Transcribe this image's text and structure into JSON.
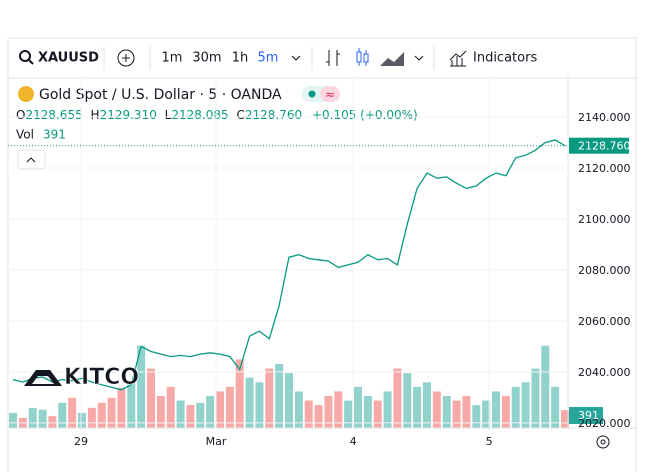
{
  "toolbar": {
    "symbol": "XAUUSD",
    "intervals": [
      "1m",
      "30m",
      "1h",
      "5m"
    ],
    "indicators": "Indicators"
  },
  "legend": {
    "title": "Gold Spot / U.S. Dollar · 5 · OANDA",
    "ohlc": [
      {
        "label": "O",
        "value": "2128.655"
      },
      {
        "label": "H",
        "value": "2129.310"
      },
      {
        "label": "L",
        "value": "2128.085"
      },
      {
        "label": "C",
        "value": "2128.760"
      }
    ],
    "change": "+0.105 (+0.00%)",
    "vol_label": "Vol",
    "vol_value": "391"
  },
  "watermark": "KITCO",
  "chart_data": [
    {
      "type": "line",
      "color": "#089981",
      "values": [
        2037,
        2036,
        2037.5,
        2038,
        2036,
        2037,
        2036.5,
        2037.5,
        2036,
        2035,
        2034,
        2033,
        2035,
        2050,
        2048,
        2047,
        2046,
        2046.5,
        2046,
        2047,
        2047.5,
        2047,
        2046,
        2041,
        2054,
        2056,
        2053,
        2066,
        2085,
        2086,
        2084.5,
        2084,
        2083.5,
        2081,
        2082,
        2083,
        2086,
        2084,
        2084.5,
        2082,
        2098,
        2112,
        2118,
        2116,
        2116.5,
        2114,
        2112,
        2113,
        2116,
        2118,
        2117,
        2124,
        2125,
        2127,
        2130,
        2131,
        2128.76
      ],
      "last": {
        "value": 2128.76,
        "label": "2128.760"
      },
      "xlim": [
        0,
        56
      ],
      "xticks": [
        {
          "value": 6.9,
          "label": "29"
        },
        {
          "value": 20.6,
          "label": "Mar"
        },
        {
          "value": 34.5,
          "label": "4"
        },
        {
          "value": 48.3,
          "label": "5"
        }
      ],
      "ylim": [
        2018,
        2156.5
      ],
      "yticks": [
        {
          "value": 2020,
          "label": "2020.000"
        },
        {
          "value": 2040,
          "label": "2040.000"
        },
        {
          "value": 2060,
          "label": "2060.000"
        },
        {
          "value": 2080,
          "label": "2080.000"
        },
        {
          "value": 2100,
          "label": "2100.000"
        },
        {
          "value": 2120,
          "label": "2120.000"
        },
        {
          "value": 2140,
          "label": "2140.000"
        }
      ]
    },
    {
      "type": "bar",
      "up_color": "#26a69a",
      "down_color": "#ef5350",
      "values": [
        330,
        220,
        440,
        400,
        260,
        550,
        660,
        330,
        440,
        550,
        660,
        880,
        990,
        1800,
        1300,
        700,
        900,
        600,
        500,
        550,
        700,
        800,
        900,
        1500,
        1100,
        1000,
        1300,
        1400,
        1200,
        800,
        600,
        500,
        700,
        800,
        600,
        900,
        700,
        600,
        800,
        1300,
        1200,
        900,
        1000,
        800,
        700,
        600,
        700,
        500,
        600,
        800,
        700,
        900,
        1000,
        1300,
        1800,
        900,
        391
      ],
      "last": {
        "value": 391,
        "label": "391"
      },
      "ylim": [
        0,
        2800
      ]
    }
  ]
}
